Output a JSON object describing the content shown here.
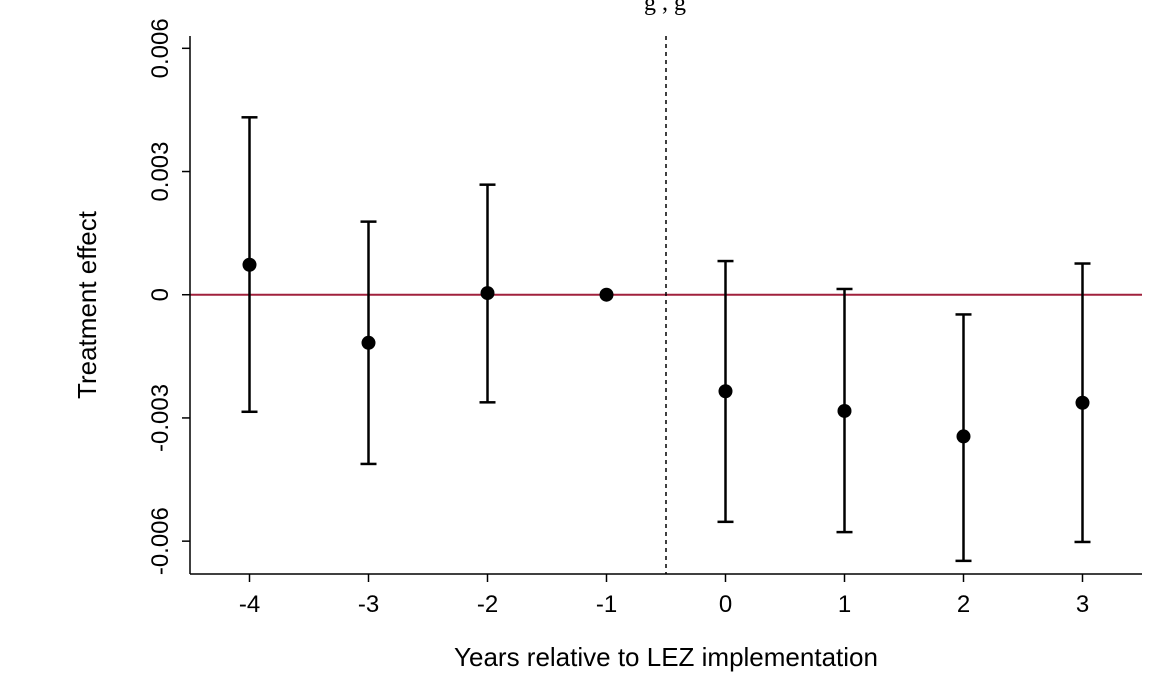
{
  "chart_data": {
    "type": "scatter",
    "title": "",
    "title_fragment": "g    , g",
    "xlabel": "Years relative to LEZ implementation",
    "ylabel": "Treatment effect",
    "xlim": [
      -4.5,
      3.5
    ],
    "ylim": [
      -0.0068,
      0.0063
    ],
    "x_ticks": [
      -4,
      -3,
      -2,
      -1,
      0,
      1,
      2,
      3
    ],
    "x_tick_labels": [
      "-4",
      "-3",
      "-2",
      "-1",
      "0",
      "1",
      "2",
      "3"
    ],
    "y_ticks": [
      -0.006,
      -0.003,
      0,
      0.003,
      0.006
    ],
    "y_tick_labels": [
      "-0.006",
      "-0.003",
      "0",
      "0.003",
      "0.006"
    ],
    "grid": false,
    "legend": "none",
    "reference_line": {
      "y": 0,
      "color": "#a0203c"
    },
    "vertical_line": {
      "x": -0.5,
      "style": "dashed",
      "color": "#000000"
    },
    "series": [
      {
        "x": [
          -4,
          -3,
          -2,
          -1,
          0,
          1,
          2,
          3
        ],
        "y": [
          0.00073,
          -0.00117,
          4e-05,
          0.0,
          -0.00235,
          -0.00283,
          -0.00345,
          -0.00263
        ],
        "ci_low": [
          -0.00285,
          -0.00412,
          -0.00262,
          0.0,
          -0.00553,
          -0.00578,
          -0.00648,
          -0.00602
        ],
        "ci_high": [
          0.00432,
          0.00178,
          0.00268,
          0.0,
          0.00082,
          0.00014,
          -0.00048,
          0.00076
        ],
        "color": "#000000"
      }
    ]
  }
}
